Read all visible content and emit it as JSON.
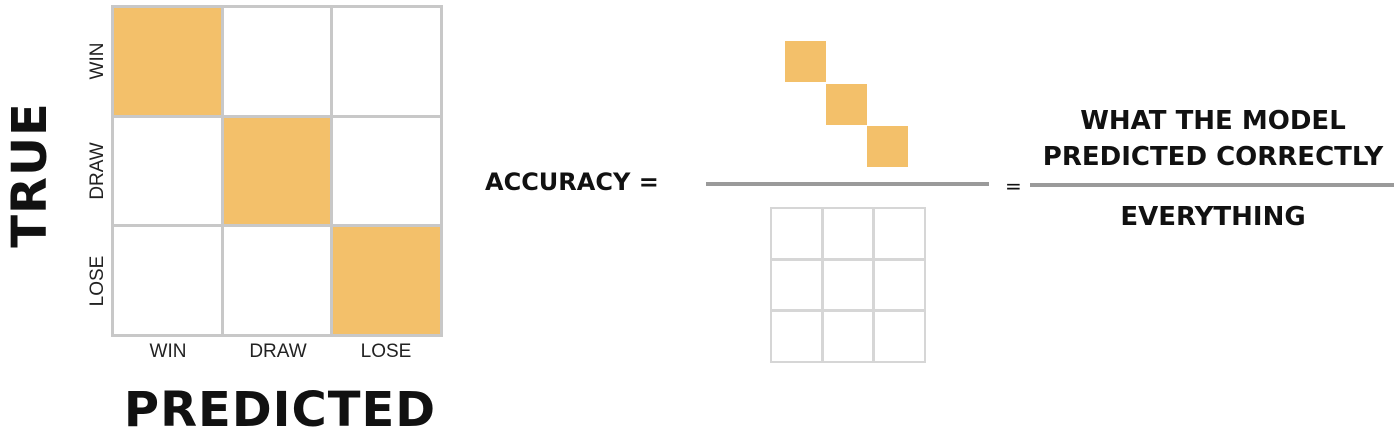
{
  "matrix": {
    "row_labels": [
      "WIN",
      "DRAW",
      "LOSE"
    ],
    "col_labels": [
      "WIN",
      "DRAW",
      "LOSE"
    ],
    "highlighted_cells": [
      [
        0,
        0
      ],
      [
        1,
        1
      ],
      [
        2,
        2
      ]
    ],
    "highlight_color": "#f3c06a",
    "grid_color": "#c8c8c8"
  },
  "axes": {
    "y_title": "TRUE",
    "x_title": "PREDICTED"
  },
  "equation": {
    "lhs": "ACCURACY =",
    "equals": "=",
    "numerator_text_line1": "WHAT THE MODEL",
    "numerator_text_line2": "PREDICTED CORRECTLY",
    "denominator_text": "EVERYTHING"
  }
}
